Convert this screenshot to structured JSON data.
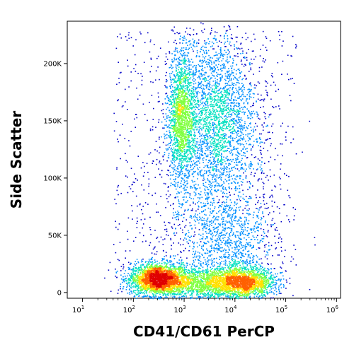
{
  "chart_data": {
    "type": "scatter",
    "subtype": "flow-cytometry-density-dot-plot",
    "xlabel": "CD41/CD61 PerCP",
    "ylabel": "Side Scatter",
    "x_scale": "log",
    "xlim": [
      5,
      1200000
    ],
    "ylim": [
      -5000,
      237000
    ],
    "x_ticks": [
      {
        "value": 10,
        "base": "10",
        "exp": "1"
      },
      {
        "value": 100,
        "base": "10",
        "exp": "2"
      },
      {
        "value": 1000,
        "base": "10",
        "exp": "3"
      },
      {
        "value": 10000,
        "base": "10",
        "exp": "4"
      },
      {
        "value": 100000,
        "base": "10",
        "exp": "5"
      },
      {
        "value": 1000000,
        "base": "10",
        "exp": "6"
      }
    ],
    "y_ticks": [
      {
        "value": 0,
        "label": "0"
      },
      {
        "value": 50000,
        "label": "50K"
      },
      {
        "value": 100000,
        "label": "100K"
      },
      {
        "value": 150000,
        "label": "150K"
      },
      {
        "value": 200000,
        "label": "200K"
      }
    ],
    "grid": false,
    "colormap": [
      "#0000c8",
      "#0090ff",
      "#00e0c0",
      "#80ff40",
      "#ffe000",
      "#ff6000",
      "#e00000"
    ],
    "populations": [
      {
        "x_center": 300,
        "y_center": 12000,
        "x_spread_decades": 0.28,
        "y_spread": 7000,
        "count": 2600
      },
      {
        "x_center": 15000,
        "y_center": 9000,
        "x_spread_decades": 0.3,
        "y_spread": 6500,
        "count": 1700
      },
      {
        "x_center": 2500,
        "y_center": 9000,
        "x_spread_decades": 0.45,
        "y_spread": 7000,
        "count": 1300
      },
      {
        "x_center": 850,
        "y_center": 155000,
        "x_spread_decades": 0.12,
        "y_spread": 28000,
        "count": 1500
      },
      {
        "x_center": 4000,
        "y_center": 155000,
        "x_spread_decades": 0.4,
        "y_spread": 35000,
        "count": 2300
      },
      {
        "x_center": 9000,
        "y_center": 40000,
        "x_spread_decades": 0.45,
        "y_spread": 25000,
        "count": 900
      },
      {
        "x_center": 3000,
        "y_center": 90000,
        "x_spread_decades": 0.6,
        "y_spread": 50000,
        "count": 900
      }
    ]
  }
}
